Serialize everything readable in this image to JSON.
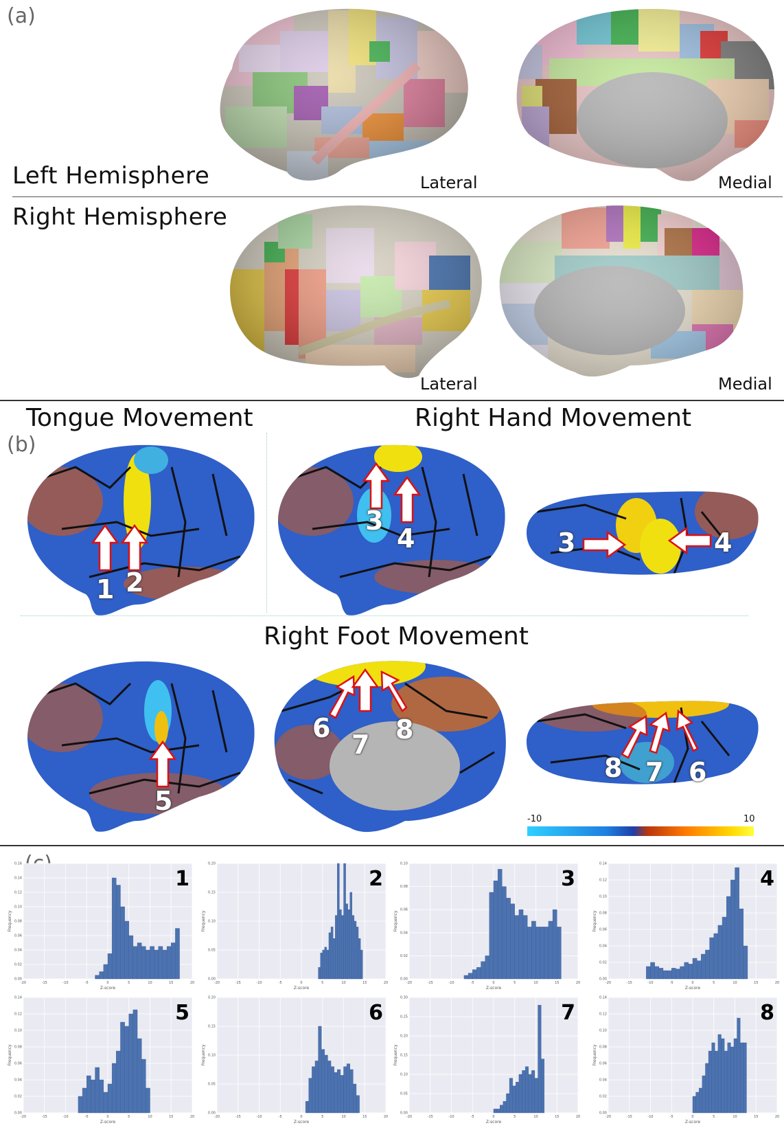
{
  "panel_a": {
    "letter": "(a)",
    "left_label": "Left   Hemisphere",
    "right_label": "Right Hemisphere",
    "views": [
      "Lateral",
      "Medial",
      "Lateral",
      "Medial"
    ]
  },
  "panel_b": {
    "letter": "(b)",
    "tongue_title": "Tongue Movement",
    "hand_title": "Right Hand Movement",
    "foot_title": "Right Foot Movement",
    "markers": [
      "1",
      "2",
      "3",
      "4",
      "3",
      "4",
      "5",
      "6",
      "7",
      "8",
      "8",
      "7",
      "6"
    ],
    "colorbar": {
      "min_label": "-10",
      "max_label": "10",
      "min": -10,
      "max": 10
    }
  },
  "panel_c": {
    "letter": "(c)",
    "xlabel": "Z-score",
    "ylabel": "Frequency",
    "xticks": [
      "-20",
      "-15",
      "-10",
      "-5",
      "0",
      "5",
      "10",
      "15",
      "20"
    ]
  },
  "chart_data": [
    {
      "type": "bar",
      "label": "1",
      "xlim": [
        -20,
        20
      ],
      "ylim": [
        0,
        0.16
      ],
      "yticks": [
        "0.00",
        "0.02",
        "0.04",
        "0.06",
        "0.08",
        "0.10",
        "0.12",
        "0.14",
        "0.16"
      ],
      "x_start": -3,
      "bin_width": 1,
      "values": [
        0.005,
        0.01,
        0.02,
        0.035,
        0.14,
        0.13,
        0.1,
        0.08,
        0.06,
        0.045,
        0.05,
        0.045,
        0.04,
        0.045,
        0.04,
        0.045,
        0.04,
        0.045,
        0.05,
        0.07
      ]
    },
    {
      "type": "bar",
      "label": "2",
      "xlim": [
        -20,
        20
      ],
      "ylim": [
        0,
        0.2
      ],
      "yticks": [
        "0.00",
        "0.05",
        "0.10",
        "0.15",
        "0.20"
      ],
      "x_start": 4,
      "bin_width": 0.5,
      "values": [
        0.02,
        0.045,
        0.05,
        0.055,
        0.05,
        0.08,
        0.09,
        0.07,
        0.11,
        0.2,
        0.12,
        0.11,
        0.2,
        0.13,
        0.12,
        0.15,
        0.11,
        0.1,
        0.09,
        0.07,
        0.05
      ]
    },
    {
      "type": "bar",
      "label": "3",
      "xlim": [
        -20,
        20
      ],
      "ylim": [
        0,
        0.1
      ],
      "yticks": [
        "0.00",
        "0.02",
        "0.04",
        "0.06",
        "0.08",
        "0.10"
      ],
      "x_start": -7,
      "bin_width": 1,
      "values": [
        0.003,
        0.005,
        0.008,
        0.01,
        0.015,
        0.02,
        0.075,
        0.085,
        0.095,
        0.08,
        0.07,
        0.065,
        0.055,
        0.06,
        0.055,
        0.045,
        0.05,
        0.045,
        0.045,
        0.045,
        0.05,
        0.06,
        0.045
      ]
    },
    {
      "type": "bar",
      "label": "4",
      "xlim": [
        -20,
        20
      ],
      "ylim": [
        0,
        0.14
      ],
      "yticks": [
        "0.00",
        "0.02",
        "0.04",
        "0.06",
        "0.08",
        "0.10",
        "0.12",
        "0.14"
      ],
      "x_start": -11,
      "bin_width": 1,
      "values": [
        0.015,
        0.02,
        0.015,
        0.013,
        0.01,
        0.01,
        0.013,
        0.012,
        0.015,
        0.02,
        0.018,
        0.025,
        0.022,
        0.03,
        0.035,
        0.05,
        0.055,
        0.065,
        0.075,
        0.1,
        0.12,
        0.135,
        0.085,
        0.04
      ]
    },
    {
      "type": "bar",
      "label": "5",
      "xlim": [
        -20,
        20
      ],
      "ylim": [
        0,
        0.14
      ],
      "yticks": [
        "0.00",
        "0.02",
        "0.04",
        "0.06",
        "0.08",
        "0.10",
        "0.12",
        "0.14"
      ],
      "x_start": -7,
      "bin_width": 1,
      "values": [
        0.02,
        0.03,
        0.045,
        0.04,
        0.055,
        0.04,
        0.025,
        0.035,
        0.06,
        0.075,
        0.11,
        0.105,
        0.12,
        0.125,
        0.09,
        0.065,
        0.03
      ]
    },
    {
      "type": "bar",
      "label": "6",
      "xlim": [
        -20,
        20
      ],
      "ylim": [
        0,
        0.2
      ],
      "yticks": [
        "0.00",
        "0.05",
        "0.10",
        "0.15",
        "0.20"
      ],
      "x_start": 1,
      "bin_width": 0.75,
      "values": [
        0.02,
        0.06,
        0.08,
        0.09,
        0.15,
        0.11,
        0.1,
        0.09,
        0.08,
        0.07,
        0.075,
        0.065,
        0.08,
        0.085,
        0.075,
        0.05,
        0.03
      ]
    },
    {
      "type": "bar",
      "label": "7",
      "xlim": [
        -20,
        20
      ],
      "ylim": [
        0,
        0.3
      ],
      "yticks": [
        "0.00",
        "0.05",
        "0.10",
        "0.15",
        "0.20",
        "0.25",
        "0.30"
      ],
      "x_start": 0,
      "bin_width": 0.75,
      "values": [
        0.01,
        0.01,
        0.02,
        0.03,
        0.05,
        0.09,
        0.07,
        0.08,
        0.1,
        0.11,
        0.12,
        0.1,
        0.11,
        0.09,
        0.28,
        0.14
      ]
    },
    {
      "type": "bar",
      "label": "8",
      "xlim": [
        -20,
        20
      ],
      "ylim": [
        0,
        0.14
      ],
      "yticks": [
        "0.00",
        "0.02",
        "0.04",
        "0.06",
        "0.08",
        "0.10",
        "0.12",
        "0.14"
      ],
      "x_start": 0,
      "bin_width": 0.75,
      "values": [
        0.02,
        0.025,
        0.03,
        0.045,
        0.06,
        0.075,
        0.085,
        0.075,
        0.095,
        0.09,
        0.075,
        0.085,
        0.08,
        0.09,
        0.115,
        0.085,
        0.085
      ]
    }
  ]
}
